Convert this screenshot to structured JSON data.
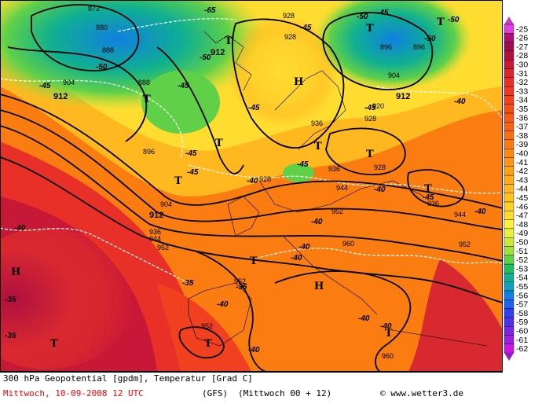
{
  "footer": {
    "title": "300 hPa Geopotential [gpdm], Temperatur [Grad C]",
    "valid_time": "Mittwoch, 10-09-2008  12 UTC",
    "model": "(GFS)",
    "run": "(Mittwoch 00 + 12)",
    "copyright": "© www.wetter3.de"
  },
  "color_scale": {
    "values": [
      "-25",
      "-26",
      "-27",
      "-28",
      "-30",
      "-31",
      "-32",
      "-33",
      "-34",
      "-35",
      "-36",
      "-37",
      "-38",
      "-39",
      "-40",
      "-41",
      "-42",
      "-43",
      "-44",
      "-45",
      "-46",
      "-47",
      "-48",
      "-49",
      "-50",
      "-51",
      "-52",
      "-53",
      "-54",
      "-55",
      "-56",
      "-57",
      "-58",
      "-59",
      "-60",
      "-61",
      "-62"
    ],
    "colors": [
      "#e040e0",
      "#b01070",
      "#a00c50",
      "#b01040",
      "#c81838",
      "#d82830",
      "#e83028",
      "#ee3828",
      "#f04020",
      "#f44e1c",
      "#f65a18",
      "#f86414",
      "#fa7010",
      "#fb7c10",
      "#fc8812",
      "#fd9414",
      "#fea018",
      "#ffac1c",
      "#ffb820",
      "#ffc424",
      "#ffd02a",
      "#ffdc30",
      "#fff040",
      "#e8f040",
      "#c8e840",
      "#a0e040",
      "#60d048",
      "#20c060",
      "#10b090",
      "#10a0c0",
      "#1080e0",
      "#2060f0",
      "#3040f0",
      "#5030e8",
      "#7828e0",
      "#a020e0",
      "#c818e0"
    ],
    "top_arrow_color": "#c040c0",
    "bottom_arrow_color": "#9020c0"
  },
  "map": {
    "pressure_centers": [
      {
        "name": "high-1",
        "letter": "H"
      },
      {
        "name": "high-2",
        "letter": "H"
      },
      {
        "name": "high-3",
        "letter": "H"
      },
      {
        "name": "low-1",
        "letter": "T"
      },
      {
        "name": "low-2",
        "letter": "T"
      },
      {
        "name": "low-3",
        "letter": "T"
      },
      {
        "name": "low-4",
        "letter": "T"
      },
      {
        "name": "low-5",
        "letter": "T"
      },
      {
        "name": "low-6",
        "letter": "T"
      },
      {
        "name": "low-7",
        "letter": "T"
      },
      {
        "name": "low-8",
        "letter": "T"
      },
      {
        "name": "low-9",
        "letter": "T"
      },
      {
        "name": "low-10",
        "letter": "T"
      },
      {
        "name": "low-11",
        "letter": "T"
      },
      {
        "name": "low-12",
        "letter": "T"
      },
      {
        "name": "low-13",
        "letter": "T"
      }
    ],
    "geopotential_labels": [
      "872",
      "880",
      "888",
      "888",
      "904",
      "912",
      "912",
      "896",
      "896",
      "912",
      "920",
      "928",
      "928",
      "936",
      "936",
      "936",
      "928",
      "928",
      "944",
      "952",
      "952",
      "952",
      "960",
      "960",
      "952",
      "944",
      "936",
      "904",
      "912",
      "944",
      "896",
      "928",
      "904",
      "952"
    ],
    "temperature_labels": [
      "-65",
      "-50",
      "-45",
      "-50",
      "-45",
      "-45",
      "-45",
      "-50",
      "-45",
      "-45",
      "-45",
      "-40",
      "-40",
      "-40",
      "-40",
      "-40",
      "-40",
      "-40",
      "-35",
      "-35",
      "-35",
      "-35",
      "-40",
      "-40",
      "-40",
      "-40",
      "-40",
      "-45",
      "-45",
      "-50",
      "-50",
      "-45"
    ]
  }
}
